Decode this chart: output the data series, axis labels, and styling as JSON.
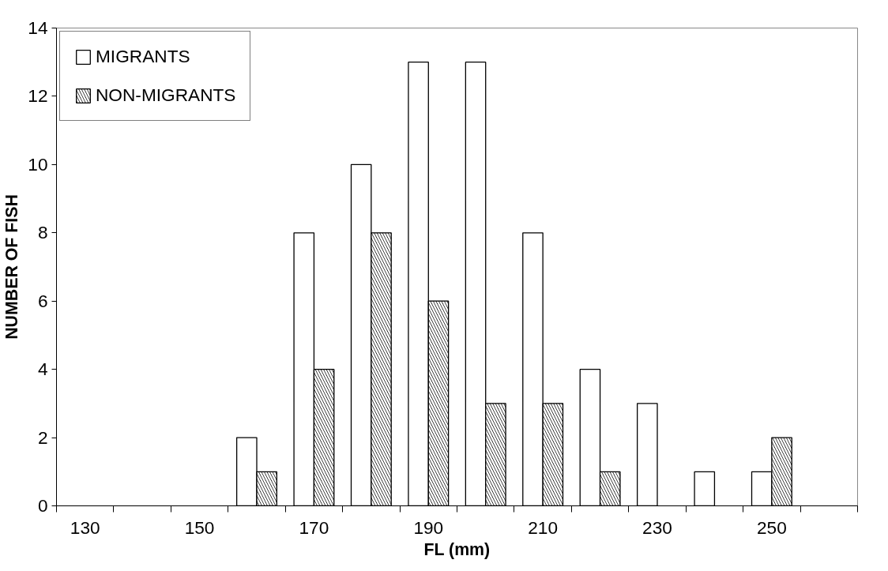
{
  "chart_data": {
    "type": "bar",
    "xlabel": "FL (mm)",
    "ylabel": "NUMBER OF FISH",
    "categories": [
      "130",
      null,
      "150",
      null,
      "170",
      null,
      "190",
      null,
      "210",
      null,
      "230",
      null,
      "250",
      null
    ],
    "series": [
      {
        "name": "MIGRANTS",
        "color": "#ffffff",
        "values": [
          0,
          0,
          0,
          2,
          8,
          10,
          13,
          13,
          8,
          4,
          3,
          1,
          1,
          0
        ]
      },
      {
        "name": "NON-MIGRANTS",
        "color": "#000000",
        "values": [
          0,
          0,
          0,
          1,
          4,
          8,
          6,
          3,
          3,
          1,
          0,
          0,
          2,
          0
        ]
      }
    ],
    "ylim": [
      0,
      14
    ],
    "yticks": [
      0,
      2,
      4,
      6,
      8,
      10,
      12,
      14
    ],
    "grid": false,
    "legend": "top left"
  }
}
